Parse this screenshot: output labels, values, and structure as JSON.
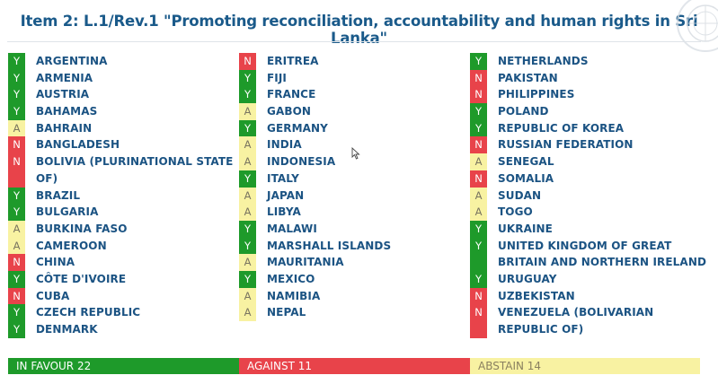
{
  "title": "Item 2: L.1/Rev.1 \"Promoting reconciliation, accountability and human rights in Sri Lanka\"",
  "emblem_icon": "un-emblem-icon",
  "colors": {
    "yes": "#1e9a2a",
    "no": "#e8434a",
    "abstain": "#f8f2a2",
    "text": "#1b5383"
  },
  "columns": [
    [
      {
        "vote": "Y",
        "name": "ARGENTINA"
      },
      {
        "vote": "Y",
        "name": "ARMENIA"
      },
      {
        "vote": "Y",
        "name": "AUSTRIA"
      },
      {
        "vote": "Y",
        "name": "BAHAMAS"
      },
      {
        "vote": "A",
        "name": "BAHRAIN"
      },
      {
        "vote": "N",
        "name": "BANGLADESH"
      },
      {
        "vote": "N",
        "name": "BOLIVIA (PLURINATIONAL STATE",
        "name2": "OF)"
      },
      {
        "vote": "Y",
        "name": "BRAZIL"
      },
      {
        "vote": "Y",
        "name": "BULGARIA"
      },
      {
        "vote": "A",
        "name": "BURKINA FASO"
      },
      {
        "vote": "A",
        "name": "CAMEROON"
      },
      {
        "vote": "N",
        "name": "CHINA"
      },
      {
        "vote": "Y",
        "name": "CÔTE D'IVOIRE"
      },
      {
        "vote": "N",
        "name": "CUBA"
      },
      {
        "vote": "Y",
        "name": "CZECH REPUBLIC"
      },
      {
        "vote": "Y",
        "name": "DENMARK"
      }
    ],
    [
      {
        "vote": "N",
        "name": "ERITREA"
      },
      {
        "vote": "Y",
        "name": "FIJI"
      },
      {
        "vote": "Y",
        "name": "FRANCE"
      },
      {
        "vote": "A",
        "name": "GABON"
      },
      {
        "vote": "Y",
        "name": "GERMANY"
      },
      {
        "vote": "A",
        "name": "INDIA"
      },
      {
        "vote": "A",
        "name": "INDONESIA"
      },
      {
        "vote": "Y",
        "name": "ITALY"
      },
      {
        "vote": "A",
        "name": "JAPAN"
      },
      {
        "vote": "A",
        "name": "LIBYA"
      },
      {
        "vote": "Y",
        "name": "MALAWI"
      },
      {
        "vote": "Y",
        "name": "MARSHALL ISLANDS"
      },
      {
        "vote": "A",
        "name": "MAURITANIA"
      },
      {
        "vote": "Y",
        "name": "MEXICO"
      },
      {
        "vote": "A",
        "name": "NAMIBIA"
      },
      {
        "vote": "A",
        "name": "NEPAL"
      }
    ],
    [
      {
        "vote": "Y",
        "name": "NETHERLANDS"
      },
      {
        "vote": "N",
        "name": "PAKISTAN"
      },
      {
        "vote": "N",
        "name": "PHILIPPINES"
      },
      {
        "vote": "Y",
        "name": "POLAND"
      },
      {
        "vote": "Y",
        "name": "REPUBLIC OF KOREA"
      },
      {
        "vote": "N",
        "name": "RUSSIAN FEDERATION"
      },
      {
        "vote": "A",
        "name": "SENEGAL"
      },
      {
        "vote": "N",
        "name": "SOMALIA"
      },
      {
        "vote": "A",
        "name": "SUDAN"
      },
      {
        "vote": "A",
        "name": "TOGO"
      },
      {
        "vote": "Y",
        "name": "UKRAINE"
      },
      {
        "vote": "Y",
        "name": "UNITED KINGDOM OF GREAT",
        "name2": "BRITAIN AND NORTHERN IRELAND"
      },
      {
        "vote": "Y",
        "name": "URUGUAY"
      },
      {
        "vote": "N",
        "name": "UZBEKISTAN"
      },
      {
        "vote": "N",
        "name": "VENEZUELA (BOLIVARIAN",
        "name2": "REPUBLIC OF)"
      }
    ]
  ],
  "tally": {
    "favour": "IN FAVOUR 22",
    "against": "AGAINST 11",
    "abstain": "ABSTAIN 14"
  }
}
